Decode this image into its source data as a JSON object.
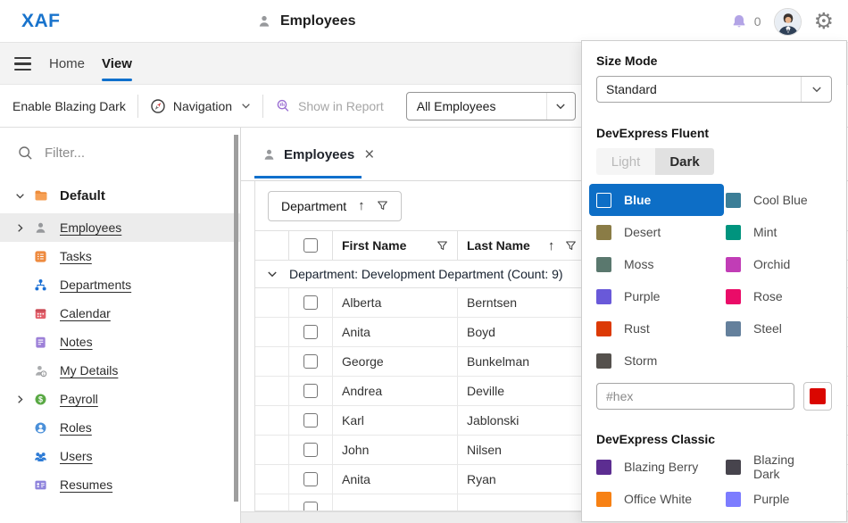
{
  "header": {
    "logo": "XAF",
    "title": "Employees",
    "notification_count": "0"
  },
  "ribbon": {
    "tabs": [
      {
        "label": "Home"
      },
      {
        "label": "View"
      }
    ]
  },
  "toolbar": {
    "blazing_dark_label": "Enable Blazing Dark",
    "navigation_label": "Navigation",
    "show_in_report_label": "Show in Report",
    "view_selector_value": "All Employees"
  },
  "sidebar": {
    "filter_placeholder": "Filter...",
    "root_label": "Default",
    "items": [
      {
        "id": "employees",
        "label": "Employees",
        "expandable": true,
        "selected": true
      },
      {
        "id": "tasks",
        "label": "Tasks",
        "expandable": false,
        "selected": false
      },
      {
        "id": "departments",
        "label": "Departments",
        "expandable": false,
        "selected": false
      },
      {
        "id": "calendar",
        "label": "Calendar",
        "expandable": false,
        "selected": false
      },
      {
        "id": "notes",
        "label": "Notes",
        "expandable": false,
        "selected": false
      },
      {
        "id": "mydetails",
        "label": "My Details",
        "expandable": false,
        "selected": false
      },
      {
        "id": "payroll",
        "label": "Payroll",
        "expandable": true,
        "selected": false
      },
      {
        "id": "roles",
        "label": "Roles",
        "expandable": false,
        "selected": false
      },
      {
        "id": "users",
        "label": "Users",
        "expandable": false,
        "selected": false
      },
      {
        "id": "resumes",
        "label": "Resumes",
        "expandable": false,
        "selected": false
      }
    ]
  },
  "main": {
    "tab_label": "Employees",
    "group_button_label": "Department",
    "group_row_label": "Department: Development Department (Count: 9)",
    "columns": [
      "First Name",
      "Last Name"
    ],
    "rows": [
      {
        "first": "Alberta",
        "last": "Berntsen"
      },
      {
        "first": "Anita",
        "last": "Boyd"
      },
      {
        "first": "George",
        "last": "Bunkelman"
      },
      {
        "first": "Andrea",
        "last": "Deville"
      },
      {
        "first": "Karl",
        "last": "Jablonski"
      },
      {
        "first": "John",
        "last": "Nilsen"
      },
      {
        "first": "Anita",
        "last": "Ryan"
      }
    ]
  },
  "theme_panel": {
    "size_mode_label": "Size Mode",
    "size_mode_value": "Standard",
    "fluent_label": "DevExpress Fluent",
    "light_label": "Light",
    "dark_label": "Dark",
    "accent_color": "#0d6ec6",
    "fluent_colors": [
      {
        "name": "Blue",
        "hex": "#0d6ec6",
        "selected": true
      },
      {
        "name": "Cool Blue",
        "hex": "#3b7e97",
        "selected": false
      },
      {
        "name": "Desert",
        "hex": "#8a7c46",
        "selected": false
      },
      {
        "name": "Mint",
        "hex": "#00947e",
        "selected": false
      },
      {
        "name": "Moss",
        "hex": "#5a786e",
        "selected": false
      },
      {
        "name": "Orchid",
        "hex": "#c13db6",
        "selected": false
      },
      {
        "name": "Purple",
        "hex": "#6959d9",
        "selected": false
      },
      {
        "name": "Rose",
        "hex": "#ea0c68",
        "selected": false
      },
      {
        "name": "Rust",
        "hex": "#dc3a05",
        "selected": false
      },
      {
        "name": "Steel",
        "hex": "#64809c",
        "selected": false
      },
      {
        "name": "Storm",
        "hex": "#55514d",
        "selected": false
      }
    ],
    "hex_placeholder": "#hex",
    "hex_button_color": "#da0600",
    "classic_label": "DevExpress Classic",
    "classic_colors": [
      {
        "name": "Blazing Berry",
        "hex": "#5c2d91"
      },
      {
        "name": "Blazing Dark",
        "hex": "#47444d"
      },
      {
        "name": "Office White",
        "hex": "#f78114"
      },
      {
        "name": "Purple",
        "hex": "#7c7cff"
      }
    ]
  }
}
